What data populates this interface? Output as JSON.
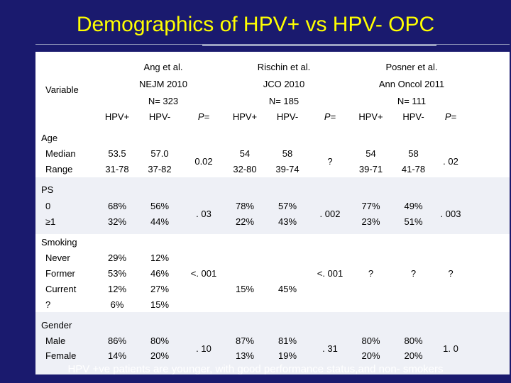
{
  "title": "Demographics of HPV+ vs HPV- OPC",
  "header": {
    "variable": "Variable",
    "studies": [
      {
        "name": "Ang et al.",
        "journal": "NEJM 2010",
        "n": "N= 323"
      },
      {
        "name": "Rischin et al.",
        "journal": "JCO 2010",
        "n": "N= 185"
      },
      {
        "name": "Posner et al.",
        "journal": "Ann Oncol 2011",
        "n": "N= 111"
      }
    ],
    "cols": [
      "HPV+",
      "HPV-",
      "P=",
      "HPV+",
      "HPV-",
      "P=",
      "HPV+",
      "HPV-",
      "P="
    ]
  },
  "sections": {
    "age": "Age",
    "ps": "PS",
    "smoking": "Smoking",
    "gender": "Gender"
  },
  "rows": {
    "median": {
      "label": "Median",
      "v": [
        "53.5",
        "57.0",
        "54",
        "58",
        "54",
        "58"
      ]
    },
    "range": {
      "label": "Range",
      "v": [
        "31-78",
        "37-82",
        "32-80",
        "39-74",
        "39-71",
        "41-78"
      ]
    },
    "age_p": [
      "0.02",
      "?",
      ". 02"
    ],
    "ps0": {
      "label": "0",
      "v": [
        "68%",
        "56%",
        "78%",
        "57%",
        "77%",
        "49%"
      ]
    },
    "ps1": {
      "label": "≥1",
      "v": [
        "32%",
        "44%",
        "22%",
        "43%",
        "23%",
        "51%"
      ]
    },
    "ps_p": [
      ". 03",
      ". 002",
      ". 003"
    ],
    "never": {
      "label": "Never",
      "v": [
        "29%",
        "12%"
      ]
    },
    "former": {
      "label": "Former",
      "v": [
        "53%",
        "46%"
      ]
    },
    "current": {
      "label": "Current",
      "v": [
        "12%",
        "27%",
        "15%",
        "45%"
      ]
    },
    "unknown": {
      "label": "?",
      "v": [
        "6%",
        "15%"
      ]
    },
    "smoking_p": [
      "<. 001",
      "<. 001"
    ],
    "posner_smoking": [
      "?",
      "?",
      "?"
    ],
    "male": {
      "label": "Male",
      "v": [
        "86%",
        "80%",
        "87%",
        "81%",
        "80%",
        "80%"
      ]
    },
    "female": {
      "label": "Female",
      "v": [
        "14%",
        "20%",
        "13%",
        "19%",
        "20%",
        "20%"
      ]
    },
    "gender_p": [
      ". 10",
      ". 31",
      "1. 0"
    ]
  },
  "footer": "HPV +ve patients are younger, with good performance status,and non- smokers"
}
